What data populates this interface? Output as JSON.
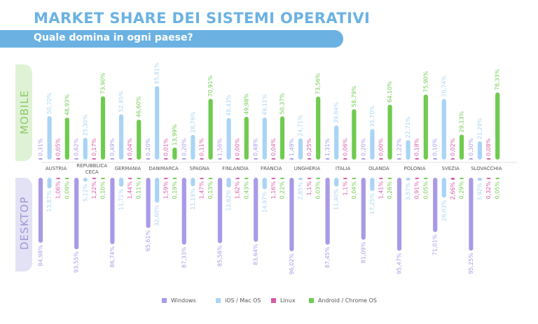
{
  "header": {
    "title": "MARKET SHARE DEI SISTEMI OPERATIVI",
    "subtitle": "Quale domina in ogni paese?"
  },
  "sections": {
    "mobile": "MOBILE",
    "desktop": "DESKTOP"
  },
  "colors": {
    "windows": "#a99ae8",
    "ios": "#a9d4f5",
    "linux": "#d85aa7",
    "android": "#6fcb4f",
    "title": "#6bb2e3"
  },
  "chart_data": {
    "type": "bar",
    "categories": [
      "AUSTRIA",
      "REPUBBLICA CECA",
      "GERMANIA",
      "DANIMARCA",
      "SPAGNA",
      "FINLANDIA",
      "FRANCIA",
      "UNGHERIA",
      "ITALIA",
      "OLANDA",
      "POLONIA",
      "SVEZIA",
      "SLOVACCHIA"
    ],
    "category_lines": [
      [
        "AUSTRIA"
      ],
      [
        "REPUBBLICA",
        "CECA"
      ],
      [
        "GERMANIA"
      ],
      [
        "DANIMARCA"
      ],
      [
        "SPAGNA"
      ],
      [
        "FINLANDIA"
      ],
      [
        "FRANCIA"
      ],
      [
        "UNGHERIA"
      ],
      [
        "ITALIA"
      ],
      [
        "OLANDA"
      ],
      [
        "POLONIA"
      ],
      [
        "SVEZIA"
      ],
      [
        "SLOVACCHIA"
      ]
    ],
    "legend": [
      "Windows",
      "iOS / Mac OS",
      "Linux",
      "Android / Chrome OS"
    ],
    "legend_position": "bottom-center",
    "grid": false,
    "mobile": {
      "series": [
        {
          "name": "Windows",
          "values": [
            0.31,
            0.62,
            0.49,
            0.2,
            0.2,
            1.56,
            0.48,
            1.49,
            1.31,
            0.2,
            1.22,
            0.1,
            0.3
          ],
          "labels": [
            "0,31%",
            "0,62%",
            "0,49%",
            "0,20%",
            "0,20%",
            "1,56%",
            "0,48%",
            "1,49%",
            "1,31%",
            "0,20%",
            "1,22%",
            "0,10%",
            "0,30%"
          ]
        },
        {
          "name": "iOS / Mac OS",
          "values": [
            50.7,
            25.3,
            52.85,
            85.81,
            28.76,
            48.43,
            49.11,
            24.71,
            39.84,
            35.7,
            22.71,
            70.74,
            21.29
          ],
          "labels": [
            "50,70%",
            "25,30%",
            "52,85%",
            "85,81%",
            "28,76%",
            "48,43%",
            "49,11%",
            "24,71%",
            "39,84%",
            "35,70%",
            "22,71%",
            "70,74%",
            "21,29%"
          ]
        },
        {
          "name": "Linux",
          "values": [
            0.05,
            0.17,
            0.04,
            0.01,
            0.11,
            0.0,
            0.04,
            0.25,
            0.06,
            0.0,
            0.18,
            0.02,
            0.08
          ],
          "labels": [
            "0,05%",
            "0,17%",
            "0,04%",
            "0,01%",
            "0,11%",
            "0,00%",
            "0,04%",
            "0,25%",
            "0,06%",
            "0,00%",
            "0,18%",
            "0,02%",
            "0,08%"
          ]
        },
        {
          "name": "Android / Chrome OS",
          "values": [
            48.93,
            73.9,
            46.6,
            13.99,
            70.91,
            49.98,
            50.37,
            73.56,
            58.79,
            64.1,
            75.9,
            29.13,
            78.33
          ],
          "labels": [
            "48,93%",
            "73,90%",
            "46,60%",
            "13,99%",
            "70,91%",
            "49,98%",
            "50,37%",
            "73,56%",
            "58,79%",
            "64,10%",
            "75,90%",
            "29,13%",
            "78,33%"
          ]
        }
      ]
    },
    "desktop": {
      "series": [
        {
          "name": "Windows",
          "values": [
            84.98,
            93.55,
            86.74,
            65.61,
            87.33,
            85.56,
            83.64,
            96.02,
            87.45,
            81.09,
            95.47,
            71.01,
            95.25
          ],
          "labels": [
            "84,98%",
            "93,55%",
            "86,74%",
            "65,61%",
            "87,33%",
            "85,56%",
            "83,64%",
            "96,02%",
            "87,45%",
            "81,09%",
            "95,47%",
            "71,01%",
            "95,25%"
          ]
        },
        {
          "name": "iOS / Mac OS",
          "values": [
            13.87,
            5.12,
            11.71,
            32.6,
            11.19,
            12.82,
            14.97,
            2.85,
            11.4,
            17.25,
            3.57,
            26.03,
            3.92
          ],
          "labels": [
            "13,87%",
            "5,12%",
            "11,71%",
            "32,60%",
            "11,19%",
            "12,82%",
            "14,97%",
            "2,85%",
            "11,40%",
            "17,25%",
            "3,57%",
            "26,03%",
            "3,92%"
          ]
        },
        {
          "name": "Linux",
          "values": [
            1.06,
            1.22,
            1.44,
            1.59,
            1.47,
            1.62,
            1.16,
            1.1,
            1.1,
            1.41,
            0.91,
            2.66,
            0.32
          ],
          "labels": [
            "1,06%",
            "1,22%",
            "1,44%",
            "1,59%",
            "1,47%",
            "1,62%",
            "1,16%",
            "1,1%",
            "1,1%",
            "1,41%",
            "0,91%",
            "2,66%",
            "0,32%"
          ]
        },
        {
          "name": "Android / Chrome OS",
          "values": [
            0.09,
            0.1,
            0.11,
            0.19,
            0.13,
            0.43,
            0.22,
            0.03,
            0.04,
            0.26,
            0.05,
            0.29,
            0.05
          ],
          "labels": [
            "0,09%",
            "0,10%",
            "0,11%",
            "0,19%",
            "0,13%",
            "0,43%",
            "0,22%",
            "0,03%",
            "0,04%",
            "0,26%",
            "0,05%",
            "0,29%",
            "0,05%"
          ]
        }
      ]
    }
  }
}
